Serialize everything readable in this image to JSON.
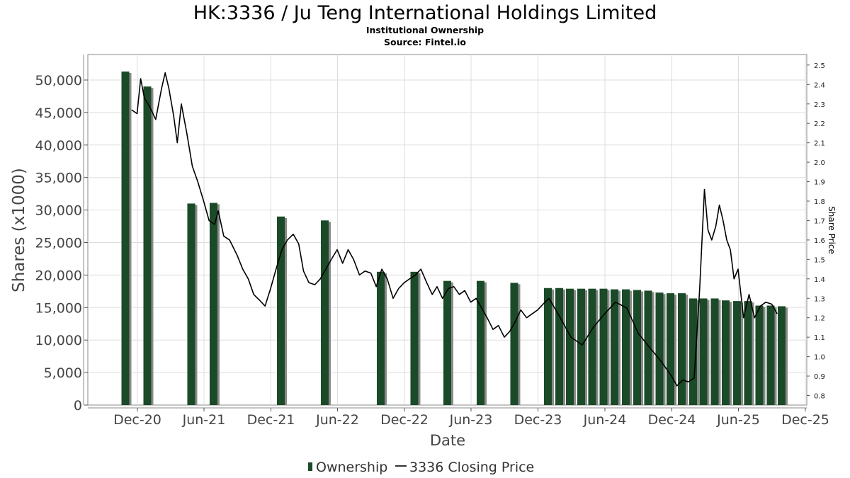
{
  "chart_data": {
    "type": "bar",
    "title": "HK:3336 / Ju Teng International Holdings Limited",
    "subtitle": "Institutional Ownership",
    "source": "Source: Fintel.io",
    "xlabel": "Date",
    "ylabel": "Shares (x1000)",
    "y2label": "Share Price",
    "ylim": [
      0,
      53600
    ],
    "y2lim": [
      0.76,
      2.53
    ],
    "yticks": [
      "0",
      "5,000",
      "10,000",
      "15,000",
      "20,000",
      "25,000",
      "30,000",
      "35,000",
      "40,000",
      "45,000",
      "50,000"
    ],
    "y2ticks": [
      "0.8",
      "0.9",
      "1.0",
      "1.1",
      "1.2",
      "1.3",
      "1.4",
      "1.5",
      "1.6",
      "1.7",
      "1.8",
      "1.9",
      "2.0",
      "2.1",
      "2.2",
      "2.3",
      "2.4",
      "2.5"
    ],
    "xticks": [
      "Dec-20",
      "Jun-21",
      "Dec-21",
      "Jun-22",
      "Dec-22",
      "Jun-23",
      "Dec-23",
      "Jun-24",
      "Dec-24",
      "Jun-25",
      "Dec-25"
    ],
    "grid": true,
    "legend_position": "bottom-center",
    "colors": {
      "ownership": "#1b4a28",
      "ownership_shadow": "#8a8a8a",
      "price": "#000000",
      "grid": "#dddddd"
    },
    "series": [
      {
        "name": "Ownership",
        "kind": "bar",
        "x": [
          "2020-11-01",
          "2020-12-31",
          "2021-04-30",
          "2021-06-30",
          "2021-12-31",
          "2022-04-30",
          "2022-09-30",
          "2022-12-31",
          "2023-03-31",
          "2023-06-30",
          "2023-09-30",
          "2023-12-31",
          "2024-01-31",
          "2024-02-29",
          "2024-03-31",
          "2024-04-30",
          "2024-05-31",
          "2024-06-30",
          "2024-07-31",
          "2024-08-31",
          "2024-09-30",
          "2024-10-31",
          "2024-11-30",
          "2024-12-31",
          "2025-01-31",
          "2025-02-28",
          "2025-03-31",
          "2025-04-30",
          "2025-05-31",
          "2025-06-30",
          "2025-07-31",
          "2025-08-31",
          "2025-09-30"
        ],
        "values": [
          51300,
          49000,
          31000,
          31100,
          29000,
          28400,
          20500,
          20500,
          19100,
          19100,
          18800,
          18000,
          18000,
          17900,
          17900,
          17900,
          17900,
          17800,
          17800,
          17700,
          17600,
          17300,
          17200,
          17200,
          16400,
          16400,
          16400,
          16100,
          16000,
          16000,
          15300,
          15300,
          15200
        ]
      },
      {
        "name": "3336 Closing Price",
        "kind": "line",
        "x": [
          "2020-11-15",
          "2020-11-30",
          "2020-12-10",
          "2020-12-20",
          "2021-01-05",
          "2021-01-20",
          "2021-02-05",
          "2021-02-15",
          "2021-02-25",
          "2021-03-10",
          "2021-03-20",
          "2021-03-31",
          "2021-04-15",
          "2021-04-30",
          "2021-05-15",
          "2021-05-31",
          "2021-06-15",
          "2021-06-30",
          "2021-07-10",
          "2021-07-25",
          "2021-08-10",
          "2021-08-31",
          "2021-09-15",
          "2021-09-30",
          "2021-10-15",
          "2021-10-31",
          "2021-11-15",
          "2021-11-30",
          "2021-12-15",
          "2021-12-31",
          "2022-01-15",
          "2022-01-31",
          "2022-02-15",
          "2022-02-28",
          "2022-03-15",
          "2022-03-31",
          "2022-04-15",
          "2022-04-30",
          "2022-05-15",
          "2022-05-31",
          "2022-06-15",
          "2022-06-30",
          "2022-07-15",
          "2022-07-31",
          "2022-08-15",
          "2022-08-31",
          "2022-09-15",
          "2022-09-30",
          "2022-10-15",
          "2022-10-31",
          "2022-11-15",
          "2022-11-30",
          "2022-12-15",
          "2022-12-31",
          "2023-01-15",
          "2023-01-31",
          "2023-02-15",
          "2023-02-28",
          "2023-03-15",
          "2023-03-31",
          "2023-04-15",
          "2023-04-30",
          "2023-05-15",
          "2023-05-31",
          "2023-06-15",
          "2023-06-30",
          "2023-07-15",
          "2023-07-31",
          "2023-08-15",
          "2023-08-31",
          "2023-09-15",
          "2023-09-30",
          "2023-10-15",
          "2023-10-31",
          "2023-11-15",
          "2023-11-30",
          "2023-12-15",
          "2023-12-31",
          "2024-01-31",
          "2024-02-29",
          "2024-03-31",
          "2024-04-30",
          "2024-05-31",
          "2024-06-30",
          "2024-07-31",
          "2024-08-31",
          "2024-09-30",
          "2024-10-31",
          "2024-11-30",
          "2024-12-15",
          "2024-12-31",
          "2025-01-15",
          "2025-01-31",
          "2025-02-15",
          "2025-02-28",
          "2025-03-10",
          "2025-03-20",
          "2025-03-31",
          "2025-04-10",
          "2025-04-20",
          "2025-04-30",
          "2025-05-10",
          "2025-05-20",
          "2025-05-31",
          "2025-06-15",
          "2025-06-30",
          "2025-07-15",
          "2025-07-31",
          "2025-08-15",
          "2025-08-31",
          "2025-09-15"
        ],
        "values": [
          2.27,
          2.25,
          2.43,
          2.33,
          2.28,
          2.22,
          2.38,
          2.46,
          2.38,
          2.24,
          2.1,
          2.3,
          2.15,
          1.98,
          1.9,
          1.8,
          1.7,
          1.68,
          1.75,
          1.62,
          1.6,
          1.52,
          1.45,
          1.4,
          1.32,
          1.29,
          1.26,
          1.35,
          1.45,
          1.55,
          1.6,
          1.63,
          1.58,
          1.44,
          1.38,
          1.37,
          1.4,
          1.45,
          1.5,
          1.55,
          1.48,
          1.55,
          1.5,
          1.42,
          1.44,
          1.43,
          1.36,
          1.45,
          1.4,
          1.3,
          1.35,
          1.38,
          1.4,
          1.42,
          1.45,
          1.38,
          1.32,
          1.36,
          1.3,
          1.35,
          1.36,
          1.32,
          1.34,
          1.28,
          1.3,
          1.25,
          1.2,
          1.14,
          1.16,
          1.1,
          1.13,
          1.18,
          1.24,
          1.2,
          1.22,
          1.24,
          1.27,
          1.3,
          1.2,
          1.1,
          1.06,
          1.15,
          1.22,
          1.28,
          1.25,
          1.12,
          1.05,
          0.98,
          0.9,
          0.85,
          0.88,
          0.87,
          0.89,
          1.35,
          1.86,
          1.65,
          1.6,
          1.67,
          1.78,
          1.7,
          1.6,
          1.55,
          1.4,
          1.45,
          1.2,
          1.32,
          1.2,
          1.26,
          1.28,
          1.27,
          1.22
        ]
      }
    ]
  }
}
